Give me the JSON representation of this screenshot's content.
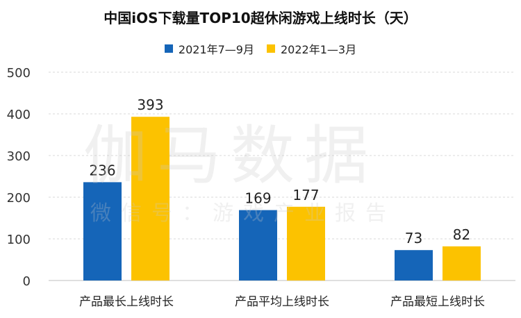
{
  "chart_data": {
    "type": "bar",
    "title": "中国iOS下载量TOP10超休闲游戏上线时长（天）",
    "categories": [
      "产品最长上线时长",
      "产品平均上线时长",
      "产品最短上线时长"
    ],
    "series": [
      {
        "name": "2021年7—9月",
        "values": [
          236,
          169,
          73
        ],
        "color": "#1565b8"
      },
      {
        "name": "2022年1—3月",
        "values": [
          393,
          177,
          82
        ],
        "color": "#fcc200"
      }
    ],
    "ylim": [
      0,
      500
    ],
    "yticks": [
      "0",
      "100",
      "200",
      "300",
      "400",
      "500"
    ],
    "grid": true,
    "legend_position": "top"
  },
  "watermark": {
    "main": "伽马数据",
    "sub": "微信号：游戏产业报告"
  }
}
